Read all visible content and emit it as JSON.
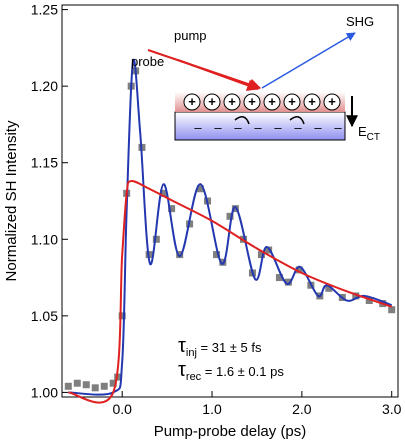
{
  "chart_data": {
    "type": "line",
    "xlabel": "Pump-probe delay (ps)",
    "ylabel": "Normalized SH Intensity",
    "xlim": [
      -0.67,
      3.07
    ],
    "ylim": [
      0.997,
      1.253
    ],
    "xticks": [
      {
        "value": 0,
        "label": "0.0"
      },
      {
        "value": 1,
        "label": "1.0"
      },
      {
        "value": 2,
        "label": "2.0"
      },
      {
        "value": 3,
        "label": "3.0"
      }
    ],
    "yticks": [
      {
        "value": 1.0,
        "label": "1.00"
      },
      1.05,
      {
        "value": 1.1,
        "label": "1.10"
      },
      1.15,
      {
        "value": 1.2,
        "label": "1.20"
      },
      1.25
    ],
    "series": [
      {
        "style": "markers",
        "color": "#7f7f7f",
        "x": [
          -0.6,
          -0.5,
          -0.4,
          -0.3,
          -0.2,
          -0.1,
          -0.05,
          0.0,
          0.05,
          0.1,
          0.15,
          0.22,
          0.3,
          0.38,
          0.46,
          0.55,
          0.64,
          0.75,
          0.87,
          0.95,
          1.05,
          1.12,
          1.2,
          1.26,
          1.35,
          1.45,
          1.55,
          1.63,
          1.75,
          1.85,
          1.97,
          2.1,
          2.2,
          2.3,
          2.45,
          2.6,
          2.75,
          2.9,
          3.0
        ],
        "values": [
          1.004,
          1.006,
          1.005,
          1.003,
          1.004,
          1.006,
          1.01,
          1.05,
          1.13,
          1.2,
          1.21,
          1.16,
          1.09,
          1.1,
          1.13,
          1.12,
          1.09,
          1.11,
          1.133,
          1.125,
          1.09,
          1.085,
          1.115,
          1.12,
          1.1,
          1.078,
          1.09,
          1.093,
          1.075,
          1.072,
          1.08,
          1.07,
          1.063,
          1.068,
          1.062,
          1.063,
          1.06,
          1.058,
          1.054
        ]
      },
      {
        "style": "line",
        "color": "#2338b0",
        "x": [
          -0.6,
          -0.1,
          0.0,
          0.05,
          0.12,
          0.2,
          0.31,
          0.46,
          0.64,
          0.87,
          1.11,
          1.26,
          1.48,
          1.61,
          1.83,
          1.98,
          2.18,
          2.28,
          2.5,
          2.7,
          3.0
        ],
        "values": [
          1.0,
          1.0,
          1.02,
          1.12,
          1.216,
          1.17,
          1.084,
          1.136,
          1.089,
          1.136,
          1.084,
          1.121,
          1.074,
          1.095,
          1.071,
          1.082,
          1.063,
          1.07,
          1.06,
          1.063,
          1.057
        ]
      },
      {
        "style": "line",
        "color": "#e02020",
        "x": [
          -0.6,
          -0.1,
          0.0,
          0.05,
          0.1,
          0.3,
          0.6,
          1.0,
          1.5,
          2.0,
          2.5,
          3.0
        ],
        "values": [
          1.0,
          1.0,
          1.09,
          1.13,
          1.138,
          1.133,
          1.124,
          1.112,
          1.094,
          1.078,
          1.066,
          1.056
        ]
      }
    ],
    "annotations": {
      "tau_inj": {
        "symbol": "τ",
        "sub": "inj",
        "rest": " = 31 ± 5 fs"
      },
      "tau_rec": {
        "symbol": "τ",
        "sub": "rec",
        "rest": " = 1.6 ± 0.1 ps"
      },
      "pump": "pump",
      "probe": "probe",
      "shg": "SHG",
      "field": {
        "symbol": "E",
        "sub": "CT"
      }
    }
  }
}
